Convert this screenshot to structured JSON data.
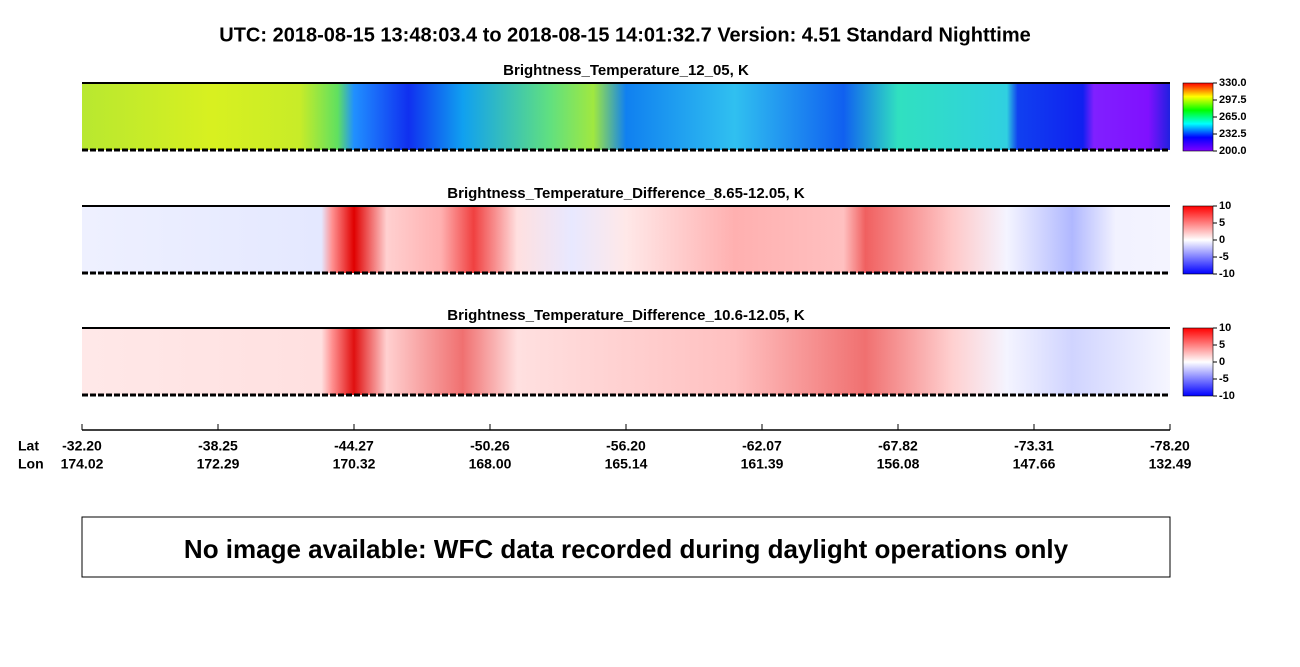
{
  "title": "UTC:  2018-08-15   13:48:03.4  to  2018-08-15   14:01:32.7    Version: 4.51  Standard Nighttime",
  "panels": [
    {
      "title": "Brightness_Temperature_12_05, K",
      "colorbar": {
        "lim": [
          200,
          330
        ],
        "colors": [
          "#8000ff",
          "#0000ff",
          "#00ffff",
          "#00ff00",
          "#ffff00",
          "#ff0000"
        ],
        "ticks": [
          {
            "value": 330,
            "label": "330.0"
          },
          {
            "value": 297.5,
            "label": "297.5"
          },
          {
            "value": 265,
            "label": "265.0"
          },
          {
            "value": 232.5,
            "label": "232.5"
          },
          {
            "value": 200,
            "label": "200.0"
          }
        ]
      }
    },
    {
      "title": "Brightness_Temperature_Difference_8.65-12.05, K",
      "colorbar": {
        "lim": [
          -10,
          10
        ],
        "colors": [
          "#0000ff",
          "#ffffff",
          "#ff0000"
        ],
        "ticks": [
          10,
          5,
          0,
          -5,
          -10
        ]
      }
    },
    {
      "title": "Brightness_Temperature_Difference_10.6-12.05, K",
      "colorbar": {
        "lim": [
          -10,
          10
        ],
        "colors": [
          "#0000ff",
          "#ffffff",
          "#ff0000"
        ],
        "ticks": [
          10,
          5,
          0,
          -5,
          -10
        ]
      }
    }
  ],
  "axis": {
    "lat_label": "Lat",
    "lon_label": "Lon",
    "lat": [
      "-32.20",
      "-38.25",
      "-44.27",
      "-50.26",
      "-56.20",
      "-62.07",
      "-67.82",
      "-73.31",
      "-78.20"
    ],
    "lon": [
      "174.02",
      "172.29",
      "170.32",
      "168.00",
      "165.14",
      "161.39",
      "156.08",
      "147.66",
      "132.49"
    ]
  },
  "message": "No image available: WFC data recorded during daylight operations only"
}
